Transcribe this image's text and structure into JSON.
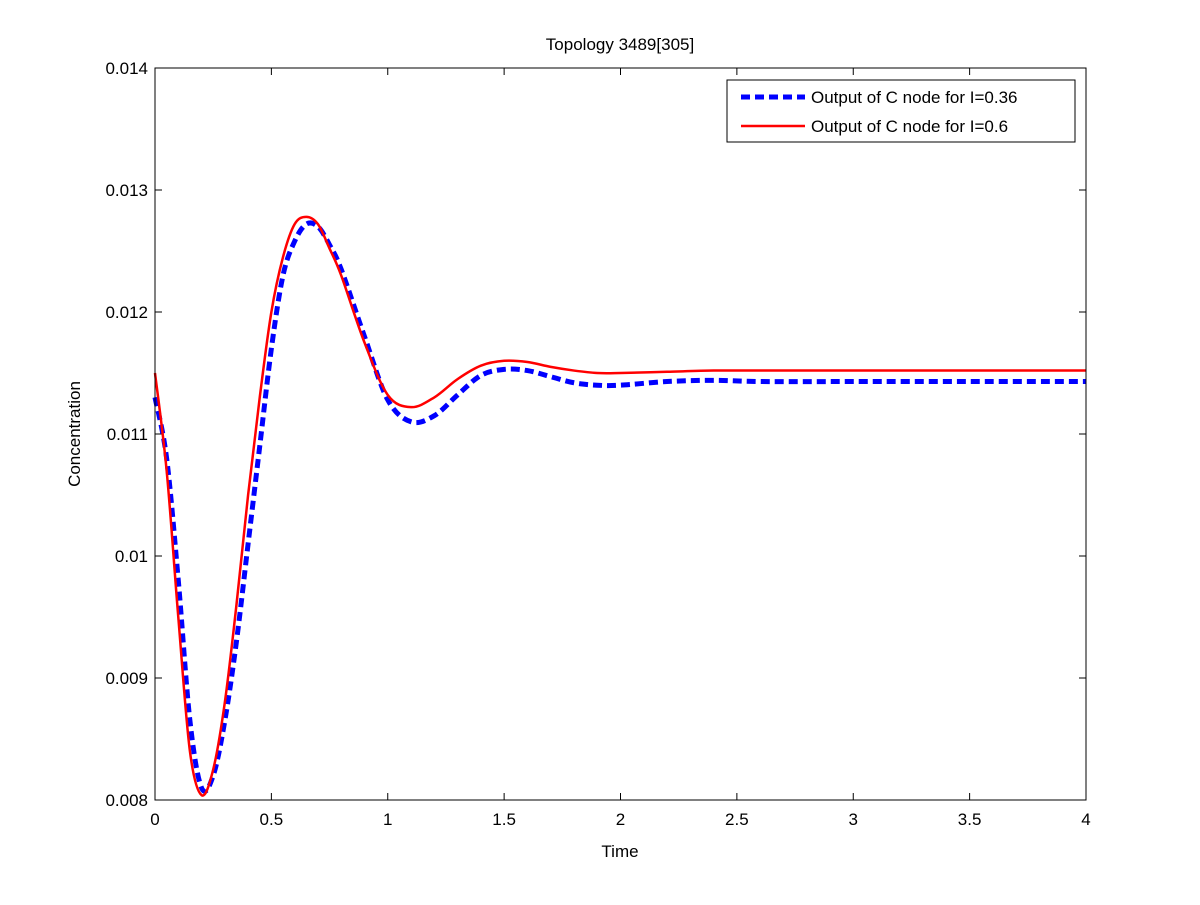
{
  "chart_data": {
    "type": "line",
    "title": "Topology 3489[305]",
    "xlabel": "Time",
    "ylabel": "Concentration",
    "xlim": [
      0,
      4
    ],
    "ylim": [
      0.008,
      0.014
    ],
    "xticks": [
      0,
      0.5,
      1,
      1.5,
      2,
      2.5,
      3,
      3.5,
      4
    ],
    "xtick_labels": [
      "0",
      "0.5",
      "1",
      "1.5",
      "2",
      "2.5",
      "3",
      "3.5",
      "4"
    ],
    "yticks": [
      0.008,
      0.009,
      0.01,
      0.011,
      0.012,
      0.013,
      0.014
    ],
    "ytick_labels": [
      "0.008",
      "0.009",
      "0.01",
      "0.011",
      "0.012",
      "0.013",
      "0.014"
    ],
    "grid": false,
    "legend_position": "top-right",
    "series": [
      {
        "name": "Output of C node for I=0.36",
        "color": "#0000ff",
        "style": "dashed",
        "x": [
          0,
          0.05,
          0.1,
          0.15,
          0.2,
          0.25,
          0.3,
          0.35,
          0.4,
          0.45,
          0.5,
          0.55,
          0.6,
          0.65,
          0.7,
          0.75,
          0.8,
          0.9,
          1.0,
          1.1,
          1.2,
          1.3,
          1.4,
          1.5,
          1.6,
          1.7,
          1.8,
          1.9,
          2.0,
          2.2,
          2.4,
          2.6,
          3.0,
          3.5,
          4.0
        ],
        "y": [
          0.0113,
          0.0108,
          0.0098,
          0.00865,
          0.0081,
          0.0082,
          0.00865,
          0.0093,
          0.0101,
          0.0109,
          0.0117,
          0.0123,
          0.01258,
          0.01272,
          0.0127,
          0.01255,
          0.01235,
          0.0118,
          0.01128,
          0.0111,
          0.01115,
          0.01132,
          0.01148,
          0.01153,
          0.01152,
          0.01147,
          0.01142,
          0.0114,
          0.0114,
          0.01143,
          0.01144,
          0.01143,
          0.01143,
          0.01143,
          0.01143
        ]
      },
      {
        "name": "Output of C node for I=0.6",
        "color": "#ff0000",
        "style": "solid",
        "x": [
          0,
          0.05,
          0.1,
          0.15,
          0.2,
          0.25,
          0.3,
          0.35,
          0.4,
          0.45,
          0.5,
          0.55,
          0.6,
          0.65,
          0.7,
          0.75,
          0.8,
          0.9,
          1.0,
          1.1,
          1.2,
          1.3,
          1.4,
          1.5,
          1.6,
          1.7,
          1.8,
          1.9,
          2.0,
          2.2,
          2.4,
          2.6,
          3.0,
          3.5,
          4.0
        ],
        "y": [
          0.0115,
          0.0107,
          0.0095,
          0.0084,
          0.00804,
          0.00825,
          0.0088,
          0.0096,
          0.0105,
          0.0113,
          0.012,
          0.01245,
          0.01272,
          0.01278,
          0.01272,
          0.01252,
          0.0123,
          0.01175,
          0.01132,
          0.01122,
          0.0113,
          0.01145,
          0.01156,
          0.0116,
          0.01159,
          0.01155,
          0.01152,
          0.0115,
          0.0115,
          0.01151,
          0.01152,
          0.01152,
          0.01152,
          0.01152,
          0.01152
        ]
      }
    ]
  }
}
